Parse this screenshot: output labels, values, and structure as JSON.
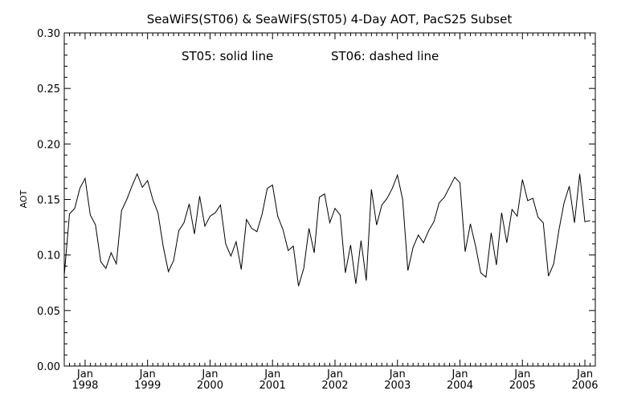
{
  "chart_data": {
    "type": "line",
    "title": "SeaWiFS(ST06) & SeaWiFS(ST05) 4-Day AOT, PacS25 Subset",
    "annotation_left": "ST05: solid line",
    "annotation_right": "ST06: dashed line",
    "ylabel": "AOT",
    "xlabel": "",
    "ylim": [
      0.0,
      0.3
    ],
    "yticks": [
      "0.00",
      "0.05",
      "0.10",
      "0.15",
      "0.20",
      "0.25",
      "0.30"
    ],
    "xticks": [
      {
        "month": "Jan",
        "year": "1998"
      },
      {
        "month": "Jan",
        "year": "1999"
      },
      {
        "month": "Jan",
        "year": "2000"
      },
      {
        "month": "Jan",
        "year": "2001"
      },
      {
        "month": "Jan",
        "year": "2002"
      },
      {
        "month": "Jan",
        "year": "2003"
      },
      {
        "month": "Jan",
        "year": "2004"
      },
      {
        "month": "Jan",
        "year": "2005"
      },
      {
        "month": "Jan",
        "year": "2006"
      }
    ],
    "xlim": [
      "1997-09",
      "2006-03"
    ],
    "grid": false,
    "legend": "none",
    "series": [
      {
        "line_style": "solid",
        "color": "#000000",
        "points": [
          [
            "1997-09",
            0.082
          ],
          [
            "1997-10",
            0.137
          ],
          [
            "1997-11",
            0.142
          ],
          [
            "1997-12",
            0.16
          ],
          [
            "1998-01",
            0.169
          ],
          [
            "1998-02",
            0.136
          ],
          [
            "1998-03",
            0.127
          ],
          [
            "1998-04",
            0.094
          ],
          [
            "1998-05",
            0.088
          ],
          [
            "1998-06",
            0.102
          ],
          [
            "1998-07",
            0.092
          ],
          [
            "1998-08",
            0.14
          ],
          [
            "1998-09",
            0.15
          ],
          [
            "1998-10",
            0.162
          ],
          [
            "1998-11",
            0.173
          ],
          [
            "1998-12",
            0.161
          ],
          [
            "1999-01",
            0.167
          ],
          [
            "1999-02",
            0.15
          ],
          [
            "1999-03",
            0.138
          ],
          [
            "1999-04",
            0.108
          ],
          [
            "1999-05",
            0.085
          ],
          [
            "1999-06",
            0.095
          ],
          [
            "1999-07",
            0.122
          ],
          [
            "1999-08",
            0.129
          ],
          [
            "1999-09",
            0.146
          ],
          [
            "1999-10",
            0.119
          ],
          [
            "1999-11",
            0.153
          ],
          [
            "1999-12",
            0.126
          ],
          [
            "2000-01",
            0.135
          ],
          [
            "2000-02",
            0.138
          ],
          [
            "2000-03",
            0.145
          ],
          [
            "2000-04",
            0.11
          ],
          [
            "2000-05",
            0.099
          ],
          [
            "2000-06",
            0.112
          ],
          [
            "2000-07",
            0.087
          ],
          [
            "2000-08",
            0.132
          ],
          [
            "2000-09",
            0.124
          ],
          [
            "2000-10",
            0.121
          ],
          [
            "2000-11",
            0.137
          ],
          [
            "2000-12",
            0.16
          ],
          [
            "2001-01",
            0.163
          ],
          [
            "2001-02",
            0.135
          ],
          [
            "2001-03",
            0.123
          ],
          [
            "2001-04",
            0.104
          ],
          [
            "2001-05",
            0.108
          ],
          [
            "2001-06",
            0.072
          ],
          [
            "2001-07",
            0.088
          ],
          [
            "2001-08",
            0.124
          ],
          [
            "2001-09",
            0.102
          ],
          [
            "2001-10",
            0.152
          ],
          [
            "2001-11",
            0.155
          ],
          [
            "2001-12",
            0.129
          ],
          [
            "2002-01",
            0.142
          ],
          [
            "2002-02",
            0.136
          ],
          [
            "2002-03",
            0.084
          ],
          [
            "2002-04",
            0.109
          ],
          [
            "2002-05",
            0.074
          ],
          [
            "2002-06",
            0.113
          ],
          [
            "2002-07",
            0.077
          ],
          [
            "2002-08",
            0.159
          ],
          [
            "2002-09",
            0.127
          ],
          [
            "2002-10",
            0.145
          ],
          [
            "2002-11",
            0.151
          ],
          [
            "2002-12",
            0.16
          ],
          [
            "2003-01",
            0.172
          ],
          [
            "2003-02",
            0.15
          ],
          [
            "2003-03",
            0.086
          ],
          [
            "2003-04",
            0.107
          ],
          [
            "2003-05",
            0.118
          ],
          [
            "2003-06",
            0.111
          ],
          [
            "2003-07",
            0.122
          ],
          [
            "2003-08",
            0.13
          ],
          [
            "2003-09",
            0.147
          ],
          [
            "2003-10",
            0.152
          ],
          [
            "2003-11",
            0.161
          ],
          [
            "2003-12",
            0.17
          ],
          [
            "2004-01",
            0.165
          ],
          [
            "2004-02",
            0.103
          ],
          [
            "2004-03",
            0.128
          ],
          [
            "2004-04",
            0.108
          ],
          [
            "2004-05",
            0.084
          ],
          [
            "2004-06",
            0.08
          ],
          [
            "2004-07",
            0.12
          ],
          [
            "2004-08",
            0.091
          ],
          [
            "2004-09",
            0.138
          ],
          [
            "2004-10",
            0.111
          ],
          [
            "2004-11",
            0.141
          ],
          [
            "2004-12",
            0.135
          ],
          [
            "2005-01",
            0.168
          ],
          [
            "2005-02",
            0.149
          ],
          [
            "2005-03",
            0.151
          ],
          [
            "2005-04",
            0.134
          ],
          [
            "2005-05",
            0.129
          ],
          [
            "2005-06",
            0.081
          ],
          [
            "2005-07",
            0.092
          ],
          [
            "2005-08",
            0.122
          ],
          [
            "2005-09",
            0.147
          ],
          [
            "2005-10",
            0.162
          ],
          [
            "2005-11",
            0.129
          ],
          [
            "2005-12",
            0.173
          ],
          [
            "2006-01",
            0.13
          ],
          [
            "2006-02",
            0.131
          ]
        ]
      }
    ]
  }
}
